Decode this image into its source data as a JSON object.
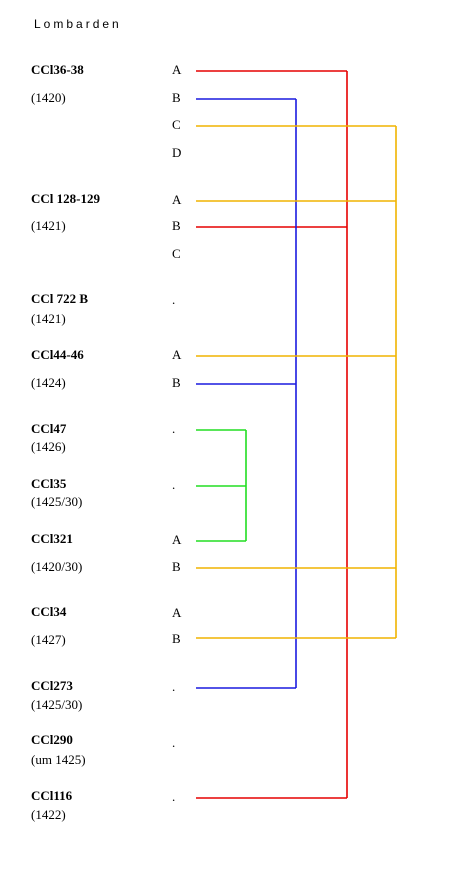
{
  "title": "Lombarden",
  "entries": [
    {
      "name": "CCl36-38",
      "date": "(1420)",
      "labels": [
        "A",
        "B",
        "C",
        "D"
      ]
    },
    {
      "name": "CCl 128-129",
      "date": "(1421)",
      "labels": [
        "A",
        "B",
        "C"
      ]
    },
    {
      "name": "CCl 722 B",
      "date": "(1421)",
      "labels": [
        "."
      ]
    },
    {
      "name": "CCl44-46",
      "date": "(1424)",
      "labels": [
        "A",
        "B"
      ]
    },
    {
      "name": "CCl47",
      "date": "(1426)",
      "labels": [
        "."
      ]
    },
    {
      "name": "CCl35",
      "date": "(1425/30)",
      "labels": [
        "."
      ]
    },
    {
      "name": "CCl321",
      "date": "(1420/30)",
      "labels": [
        "A",
        "B"
      ]
    },
    {
      "name": "CCl34",
      "date": "(1427)",
      "labels": [
        "A",
        "B"
      ]
    },
    {
      "name": "CCl273",
      "date": "(1425/30)",
      "labels": [
        "."
      ]
    },
    {
      "name": "CCl290",
      "date": "(um 1425)",
      "labels": [
        "."
      ]
    },
    {
      "name": "CCl116",
      "date": "(1422)",
      "labels": [
        "."
      ]
    }
  ]
}
